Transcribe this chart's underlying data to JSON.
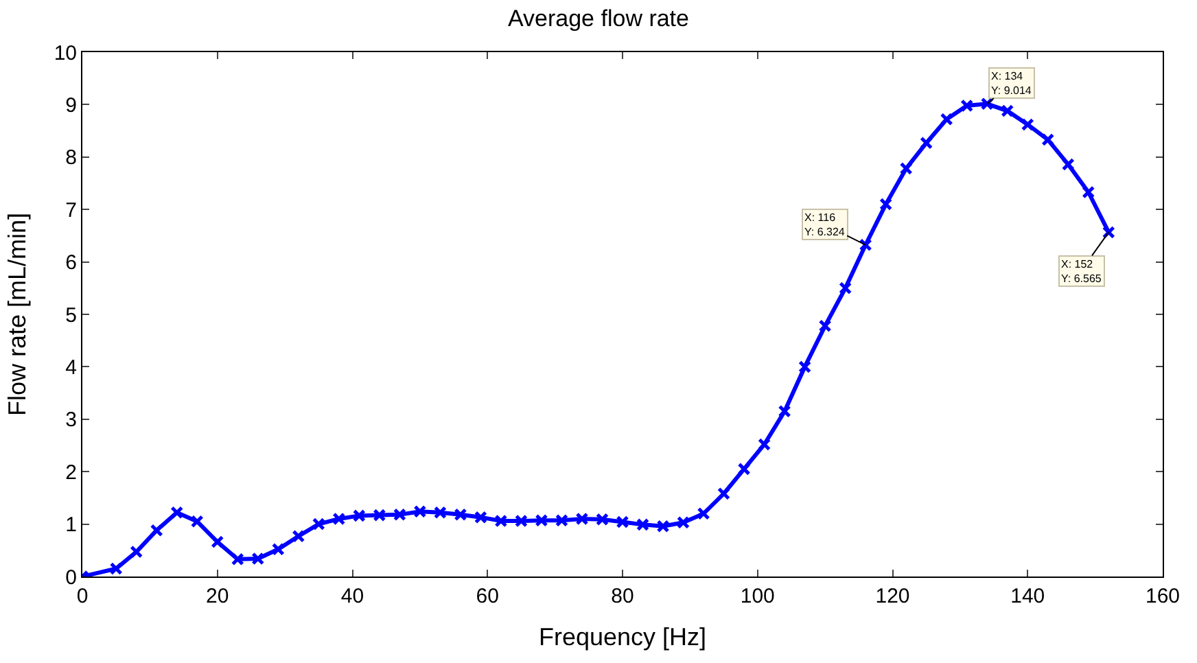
{
  "chart_data": {
    "type": "line",
    "title": "Average flow rate",
    "xlabel": "Frequency [Hz]",
    "ylabel": "Flow rate [mL/min]",
    "x": [
      0,
      5,
      8,
      11,
      14,
      17,
      20,
      23,
      26,
      29,
      32,
      35,
      38,
      41,
      44,
      47,
      50,
      53,
      56,
      59,
      62,
      65,
      68,
      71,
      74,
      77,
      80,
      83,
      86,
      89,
      92,
      95,
      98,
      101,
      104,
      107,
      110,
      113,
      116,
      119,
      122,
      125,
      128,
      131,
      134,
      137,
      140,
      143,
      146,
      149,
      152
    ],
    "series": [
      {
        "color": "#0000ff",
        "values": [
          0,
          0.15,
          0.47,
          0.88,
          1.22,
          1.05,
          0.66,
          0.33,
          0.34,
          0.52,
          0.77,
          1.0,
          1.1,
          1.16,
          1.17,
          1.18,
          1.24,
          1.22,
          1.18,
          1.13,
          1.06,
          1.06,
          1.07,
          1.07,
          1.1,
          1.09,
          1.04,
          0.99,
          0.96,
          1.03,
          1.2,
          1.58,
          2.05,
          2.52,
          3.15,
          4.0,
          4.78,
          5.5,
          6.324,
          7.1,
          7.78,
          8.27,
          8.72,
          8.98,
          9.014,
          8.88,
          8.62,
          8.33,
          7.86,
          7.33,
          6.565
        ]
      }
    ],
    "xlim": [
      0,
      160
    ],
    "xticks": [
      0,
      20,
      40,
      60,
      80,
      100,
      120,
      140,
      160
    ],
    "ylim": [
      0,
      10
    ],
    "yticks": [
      0,
      1,
      2,
      3,
      4,
      5,
      6,
      7,
      8,
      9,
      10
    ],
    "marker": "cross",
    "line_style": "solid",
    "annotations": [
      {
        "text": "X: 116\nY: 6.324",
        "x": 116,
        "y": 6.324
      },
      {
        "text": "X: 134\nY: 9.014",
        "x": 134,
        "y": 9.014
      },
      {
        "text": "X: 152\nY: 6.565",
        "x": 152,
        "y": 6.565
      }
    ]
  }
}
